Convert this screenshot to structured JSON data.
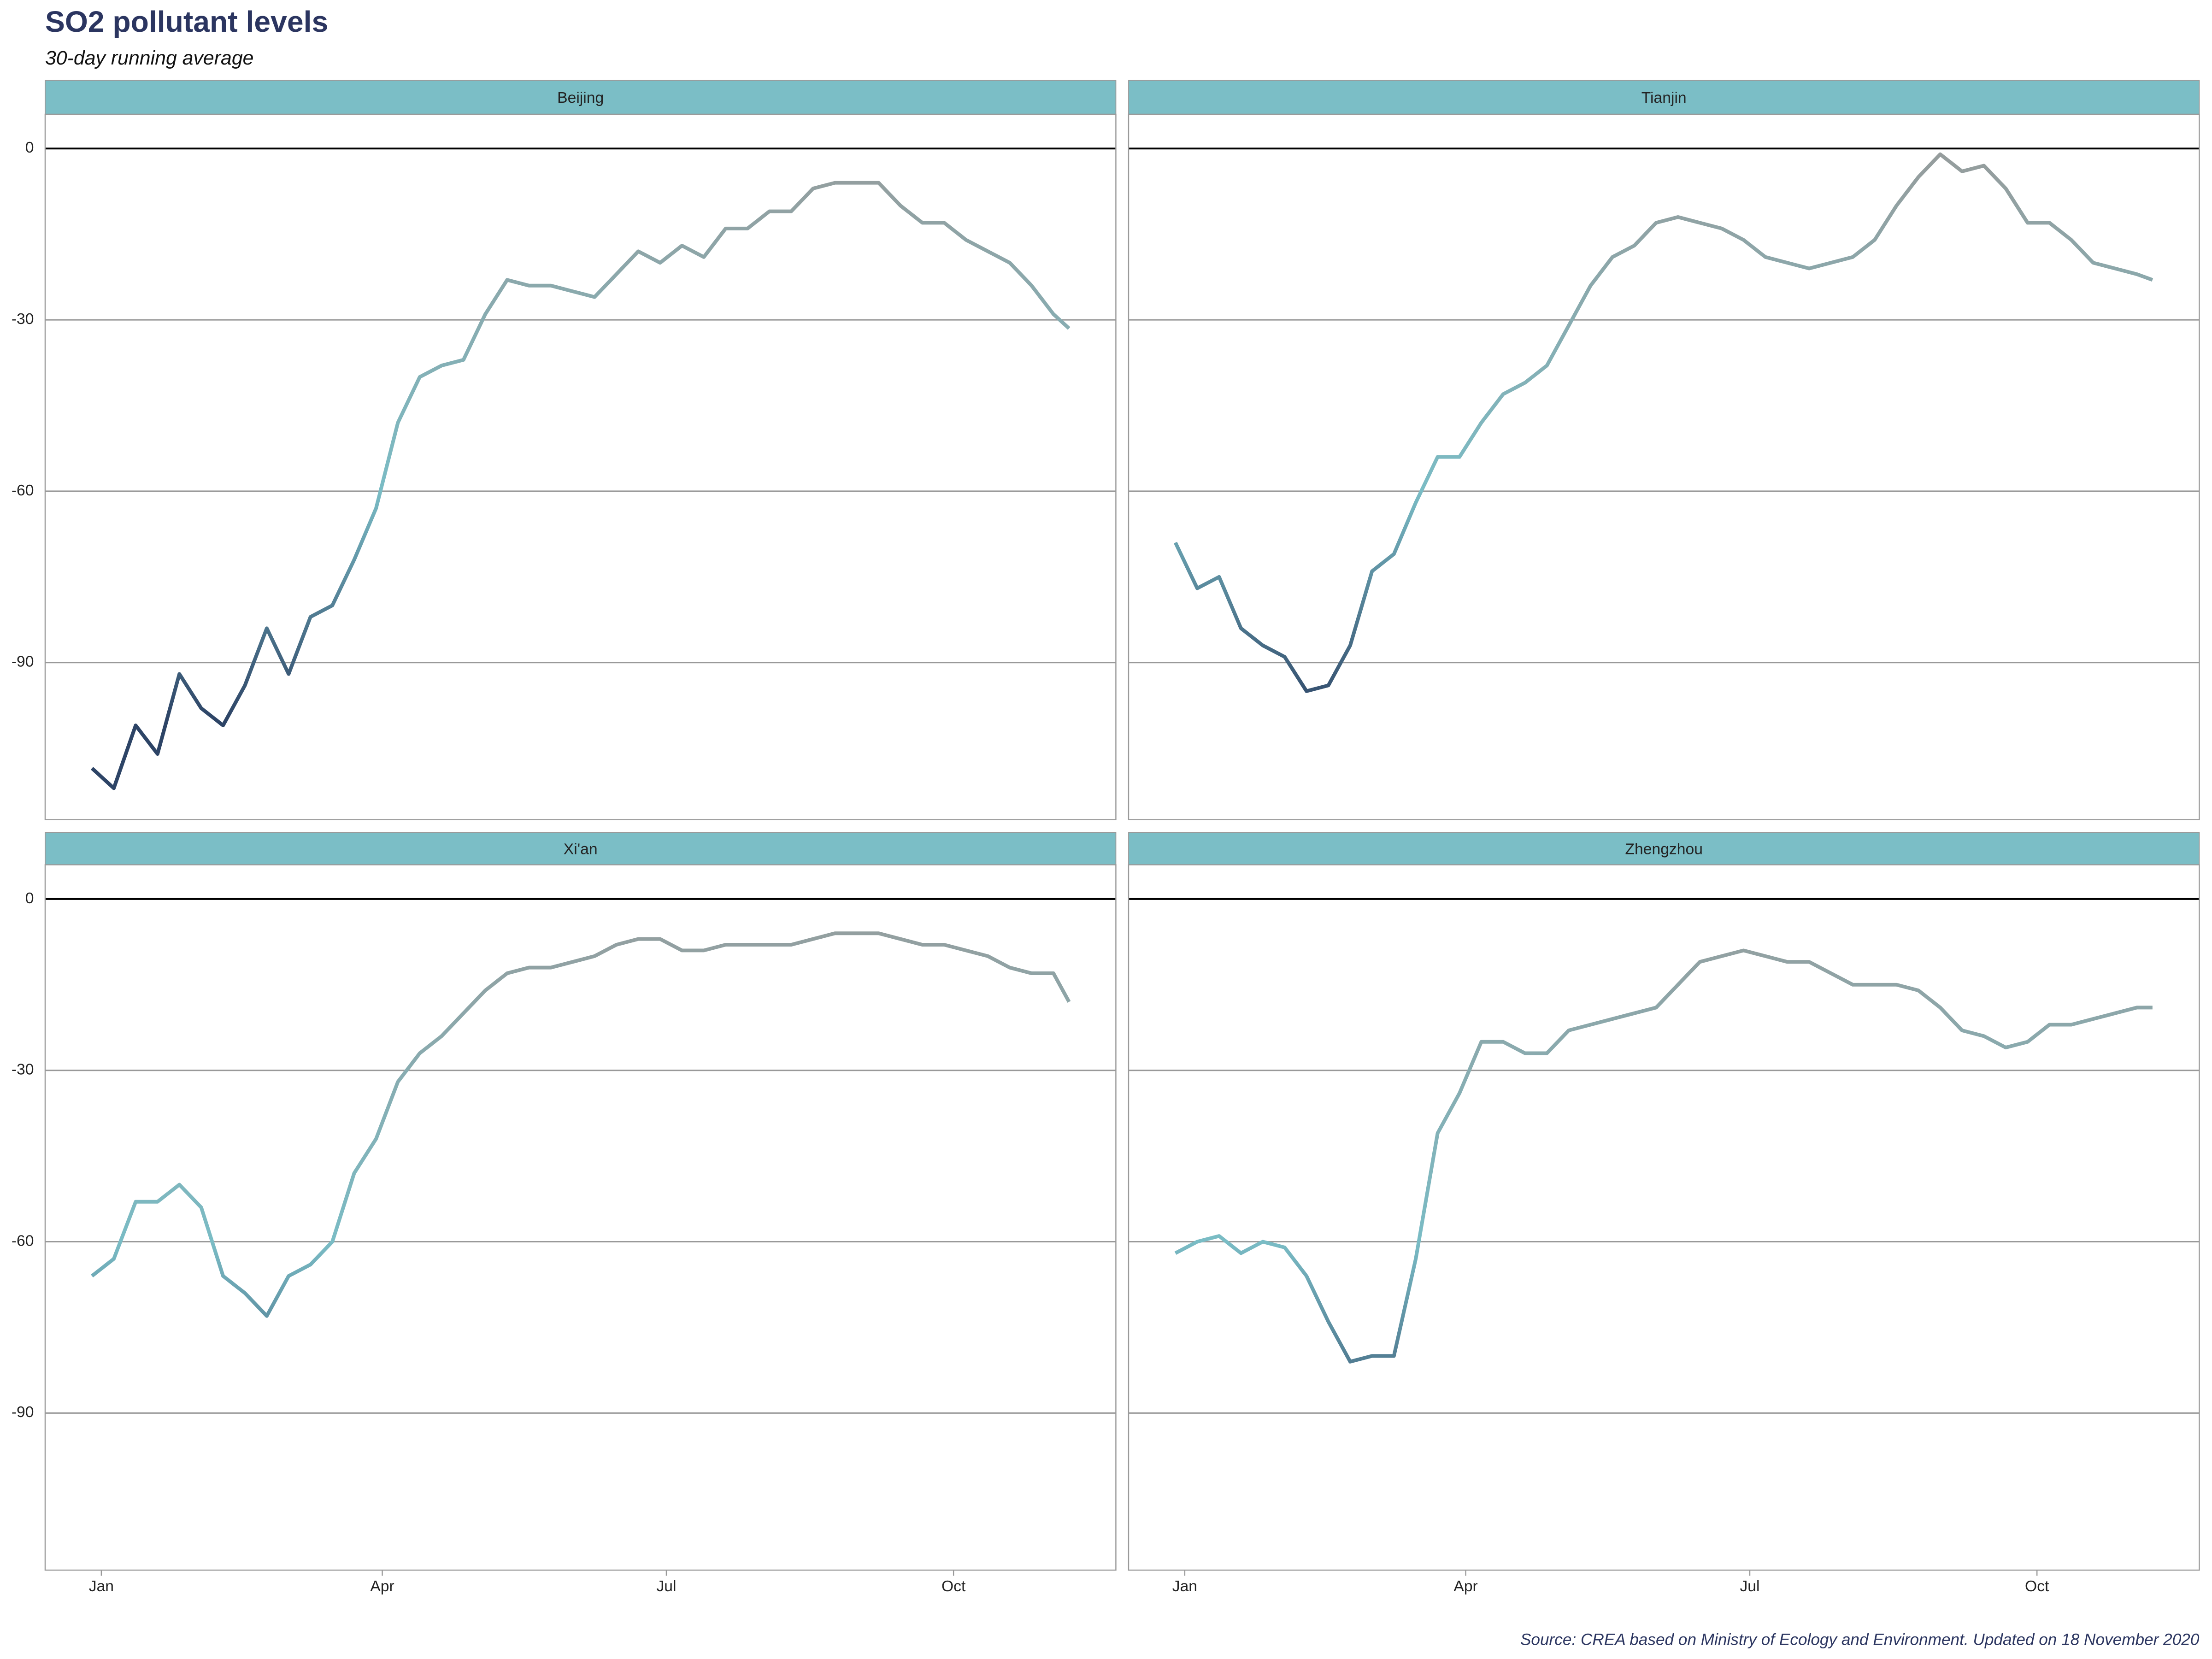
{
  "title": "SO2 pollutant levels",
  "subtitle": "30-day running average",
  "caption": "Source: CREA based on Ministry of Ecology and Environment. Updated on 18 November 2020",
  "color_stops": [
    {
      "value": -100,
      "color": "#2d4466"
    },
    {
      "value": -60,
      "color": "#7abcc5"
    },
    {
      "value": 0,
      "color": "#969c9c"
    }
  ],
  "chart_data": [
    {
      "type": "line",
      "title": "Beijing",
      "x": [
        -2,
        5,
        12,
        19,
        26,
        33,
        40,
        47,
        54,
        61,
        68,
        75,
        82,
        89,
        96,
        103,
        110,
        117,
        124,
        131,
        138,
        145,
        152,
        159,
        166,
        173,
        180,
        187,
        194,
        201,
        208,
        215,
        222,
        229,
        236,
        243,
        250,
        257,
        264,
        271,
        278,
        285,
        292,
        299,
        306,
        311
      ],
      "values": [
        -108.5,
        -112,
        -101,
        -106,
        -92,
        -98,
        -101,
        -94,
        -84,
        -92,
        -82,
        -80,
        -72,
        -63,
        -48,
        -40,
        -38,
        -37,
        -29,
        -23,
        -24,
        -24,
        -25,
        -26,
        -22,
        -18,
        -20,
        -17,
        -19,
        -14,
        -14,
        -11,
        -11,
        -7,
        -6,
        -6,
        -6,
        -10,
        -13,
        -13,
        -16,
        -18,
        -20,
        -24,
        -29,
        -31.5
      ],
      "xlim": [
        -17,
        326
      ],
      "ylim": [
        -117.5,
        6
      ],
      "yticks": [
        0,
        -30,
        -60,
        -90
      ]
    },
    {
      "type": "line",
      "title": "Tianjin",
      "x": [
        -2,
        5,
        12,
        19,
        26,
        33,
        40,
        47,
        54,
        61,
        68,
        75,
        82,
        89,
        96,
        103,
        110,
        117,
        124,
        131,
        138,
        145,
        152,
        159,
        166,
        173,
        180,
        187,
        194,
        201,
        208,
        215,
        222,
        229,
        236,
        243,
        250,
        257,
        264,
        271,
        278,
        285,
        292,
        299,
        306,
        311
      ],
      "values": [
        -69,
        -77,
        -75,
        -84,
        -87,
        -89,
        -95,
        -94,
        -87,
        -74,
        -71,
        -62,
        -54,
        -54,
        -48,
        -43,
        -41,
        -38,
        -31,
        -24,
        -19,
        -17,
        -13,
        -12,
        -13,
        -14,
        -16,
        -19,
        -20,
        -21,
        -20,
        -19,
        -16,
        -10,
        -5,
        -1,
        -4,
        -3,
        -7,
        -13,
        -13,
        -16,
        -20,
        -21,
        -22,
        -23
      ],
      "xlim": [
        -17,
        326
      ],
      "ylim": [
        -117.5,
        6
      ],
      "yticks": [
        0,
        -30,
        -60,
        -90
      ]
    },
    {
      "type": "line",
      "title": "Xi'an",
      "x": [
        -2,
        5,
        12,
        19,
        26,
        33,
        40,
        47,
        54,
        61,
        68,
        75,
        82,
        89,
        96,
        103,
        110,
        117,
        124,
        131,
        138,
        145,
        152,
        159,
        166,
        173,
        180,
        187,
        194,
        201,
        208,
        215,
        222,
        229,
        236,
        243,
        250,
        257,
        264,
        271,
        278,
        285,
        292,
        299,
        306,
        311
      ],
      "values": [
        -66,
        -63,
        -53,
        -53,
        -50,
        -54,
        -66,
        -69,
        -73,
        -66,
        -64,
        -60,
        -48,
        -42,
        -32,
        -27,
        -24,
        -20,
        -16,
        -13,
        -12,
        -12,
        -11,
        -10,
        -8,
        -7,
        -7,
        -9,
        -9,
        -8,
        -8,
        -8,
        -8,
        -7,
        -6,
        -6,
        -6,
        -7,
        -8,
        -8,
        -9,
        -10,
        -12,
        -13,
        -13,
        -18
      ],
      "xlim": [
        -17,
        326
      ],
      "ylim": [
        -117.5,
        6
      ],
      "yticks": [
        0,
        -30,
        -60,
        -90
      ],
      "xticks": [
        {
          "value": 1,
          "label": "Jan"
        },
        {
          "value": 91,
          "label": "Apr"
        },
        {
          "value": 182,
          "label": "Jul"
        },
        {
          "value": 274,
          "label": "Oct"
        }
      ]
    },
    {
      "type": "line",
      "title": "Zhengzhou",
      "x": [
        -2,
        5,
        12,
        19,
        26,
        33,
        40,
        47,
        54,
        61,
        68,
        75,
        82,
        89,
        96,
        103,
        110,
        117,
        124,
        131,
        138,
        145,
        152,
        159,
        166,
        173,
        180,
        187,
        194,
        201,
        208,
        215,
        222,
        229,
        236,
        243,
        250,
        257,
        264,
        271,
        278,
        285,
        292,
        299,
        306,
        311
      ],
      "values": [
        -62,
        -60,
        -59,
        -62,
        -60,
        -61,
        -66,
        -74,
        -81,
        -80,
        -80,
        -63,
        -41,
        -34,
        -25,
        -25,
        -27,
        -27,
        -23,
        -22,
        -21,
        -20,
        -19,
        -15,
        -11,
        -10,
        -9,
        -10,
        -11,
        -11,
        -13,
        -15,
        -15,
        -15,
        -16,
        -19,
        -23,
        -24,
        -26,
        -25,
        -22,
        -22,
        -21,
        -20,
        -19,
        -19
      ],
      "xlim": [
        -17,
        326
      ],
      "ylim": [
        -117.5,
        6
      ],
      "yticks": [
        0,
        -30,
        -60,
        -90
      ],
      "xticks": [
        {
          "value": 1,
          "label": "Jan"
        },
        {
          "value": 91,
          "label": "Apr"
        },
        {
          "value": 182,
          "label": "Jul"
        },
        {
          "value": 274,
          "label": "Oct"
        }
      ]
    }
  ]
}
